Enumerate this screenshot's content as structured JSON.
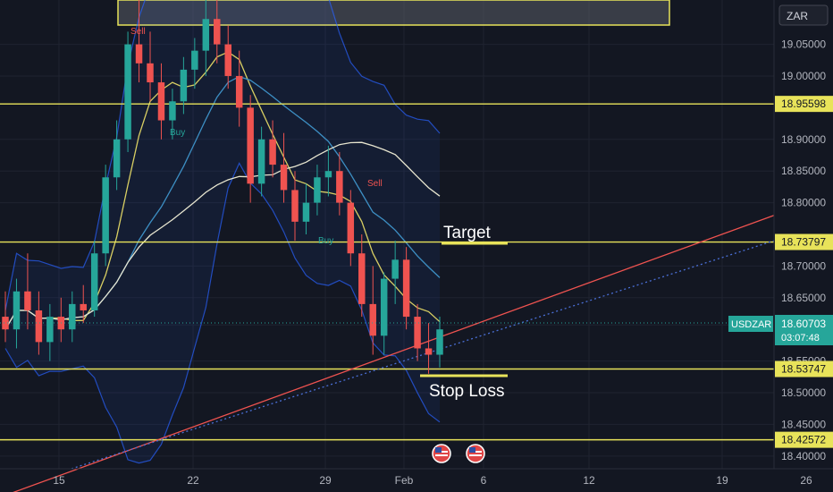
{
  "symbol": "USDZAR",
  "currency_badge": "ZAR",
  "colors": {
    "background": "#131722",
    "up": "#26a69a",
    "down": "#ef5350",
    "level": "#e8e35a",
    "trend_red": "#ef5350",
    "trend_blue": "#4a6fd6",
    "bb_band": "#2962ff",
    "ma_yellow": "#d9cf63",
    "ma_blue": "#3d8fc4",
    "ma_white": "#e8e6d0",
    "price_badge": "#26a69a",
    "axis_text": "#b2b5be"
  },
  "annotations": {
    "target": "Target",
    "stop_loss": "Stop Loss",
    "sell_1": "Sell",
    "sell_2": "Sell",
    "buy_1": "Buy",
    "buy_2": "Buy"
  },
  "price_tag": {
    "value": "18.60703",
    "countdown": "03:07:48"
  },
  "chart_data": {
    "type": "candlestick",
    "y_ticks": [
      "19.05000",
      "19.00000",
      "18.95598",
      "18.90000",
      "18.85000",
      "18.80000",
      "18.73797",
      "18.70000",
      "18.65000",
      "18.60703",
      "18.55000",
      "18.53747",
      "18.50000",
      "18.45000",
      "18.42572",
      "18.40000"
    ],
    "x_ticks": [
      "15",
      "22",
      "29",
      "Feb",
      "6",
      "12",
      "19",
      "26"
    ],
    "ylim": [
      18.38,
      19.12
    ],
    "horizontal_levels": [
      {
        "value": 18.95598,
        "label": "18.95598"
      },
      {
        "value": 18.73797,
        "label": "18.73797"
      },
      {
        "value": 18.53747,
        "label": "18.53747"
      },
      {
        "value": 18.42572,
        "label": "18.42572"
      }
    ],
    "current_price": 18.60703,
    "candles": [
      {
        "o": 18.62,
        "h": 18.66,
        "l": 18.58,
        "c": 18.6
      },
      {
        "o": 18.6,
        "h": 18.68,
        "l": 18.57,
        "c": 18.66
      },
      {
        "o": 18.66,
        "h": 18.72,
        "l": 18.6,
        "c": 18.63
      },
      {
        "o": 18.63,
        "h": 18.66,
        "l": 18.56,
        "c": 18.58
      },
      {
        "o": 18.58,
        "h": 18.64,
        "l": 18.55,
        "c": 18.62
      },
      {
        "o": 18.62,
        "h": 18.65,
        "l": 18.58,
        "c": 18.6
      },
      {
        "o": 18.6,
        "h": 18.66,
        "l": 18.58,
        "c": 18.64
      },
      {
        "o": 18.64,
        "h": 18.67,
        "l": 18.61,
        "c": 18.63
      },
      {
        "o": 18.63,
        "h": 18.74,
        "l": 18.62,
        "c": 18.72
      },
      {
        "o": 18.72,
        "h": 18.86,
        "l": 18.7,
        "c": 18.84
      },
      {
        "o": 18.84,
        "h": 18.93,
        "l": 18.82,
        "c": 18.9
      },
      {
        "o": 18.9,
        "h": 19.07,
        "l": 18.88,
        "c": 19.05
      },
      {
        "o": 19.05,
        "h": 19.12,
        "l": 18.99,
        "c": 19.02
      },
      {
        "o": 19.02,
        "h": 19.07,
        "l": 18.96,
        "c": 18.99
      },
      {
        "o": 18.99,
        "h": 19.02,
        "l": 18.9,
        "c": 18.93
      },
      {
        "o": 18.93,
        "h": 18.98,
        "l": 18.9,
        "c": 18.96
      },
      {
        "o": 18.96,
        "h": 19.03,
        "l": 18.94,
        "c": 19.01
      },
      {
        "o": 19.01,
        "h": 19.06,
        "l": 18.98,
        "c": 19.04
      },
      {
        "o": 19.04,
        "h": 19.12,
        "l": 19.0,
        "c": 19.09
      },
      {
        "o": 19.09,
        "h": 19.12,
        "l": 19.02,
        "c": 19.05
      },
      {
        "o": 19.05,
        "h": 19.08,
        "l": 18.98,
        "c": 19.0
      },
      {
        "o": 19.0,
        "h": 19.04,
        "l": 18.92,
        "c": 18.95
      },
      {
        "o": 18.95,
        "h": 18.97,
        "l": 18.8,
        "c": 18.83
      },
      {
        "o": 18.83,
        "h": 18.92,
        "l": 18.81,
        "c": 18.9
      },
      {
        "o": 18.9,
        "h": 18.93,
        "l": 18.84,
        "c": 18.86
      },
      {
        "o": 18.86,
        "h": 18.91,
        "l": 18.8,
        "c": 18.82
      },
      {
        "o": 18.82,
        "h": 18.85,
        "l": 18.74,
        "c": 18.77
      },
      {
        "o": 18.77,
        "h": 18.83,
        "l": 18.75,
        "c": 18.8
      },
      {
        "o": 18.8,
        "h": 18.86,
        "l": 18.78,
        "c": 18.84
      },
      {
        "o": 18.84,
        "h": 18.89,
        "l": 18.81,
        "c": 18.85
      },
      {
        "o": 18.85,
        "h": 18.88,
        "l": 18.78,
        "c": 18.8
      },
      {
        "o": 18.8,
        "h": 18.82,
        "l": 18.7,
        "c": 18.72
      },
      {
        "o": 18.72,
        "h": 18.75,
        "l": 18.62,
        "c": 18.64
      },
      {
        "o": 18.64,
        "h": 18.7,
        "l": 18.56,
        "c": 18.59
      },
      {
        "o": 18.59,
        "h": 18.69,
        "l": 18.56,
        "c": 18.68
      },
      {
        "o": 18.68,
        "h": 18.74,
        "l": 18.64,
        "c": 18.71
      },
      {
        "o": 18.71,
        "h": 18.73,
        "l": 18.6,
        "c": 18.62
      },
      {
        "o": 18.62,
        "h": 18.64,
        "l": 18.55,
        "c": 18.57
      },
      {
        "o": 18.57,
        "h": 18.61,
        "l": 18.53,
        "c": 18.56
      },
      {
        "o": 18.56,
        "h": 18.62,
        "l": 18.54,
        "c": 18.6
      }
    ]
  }
}
